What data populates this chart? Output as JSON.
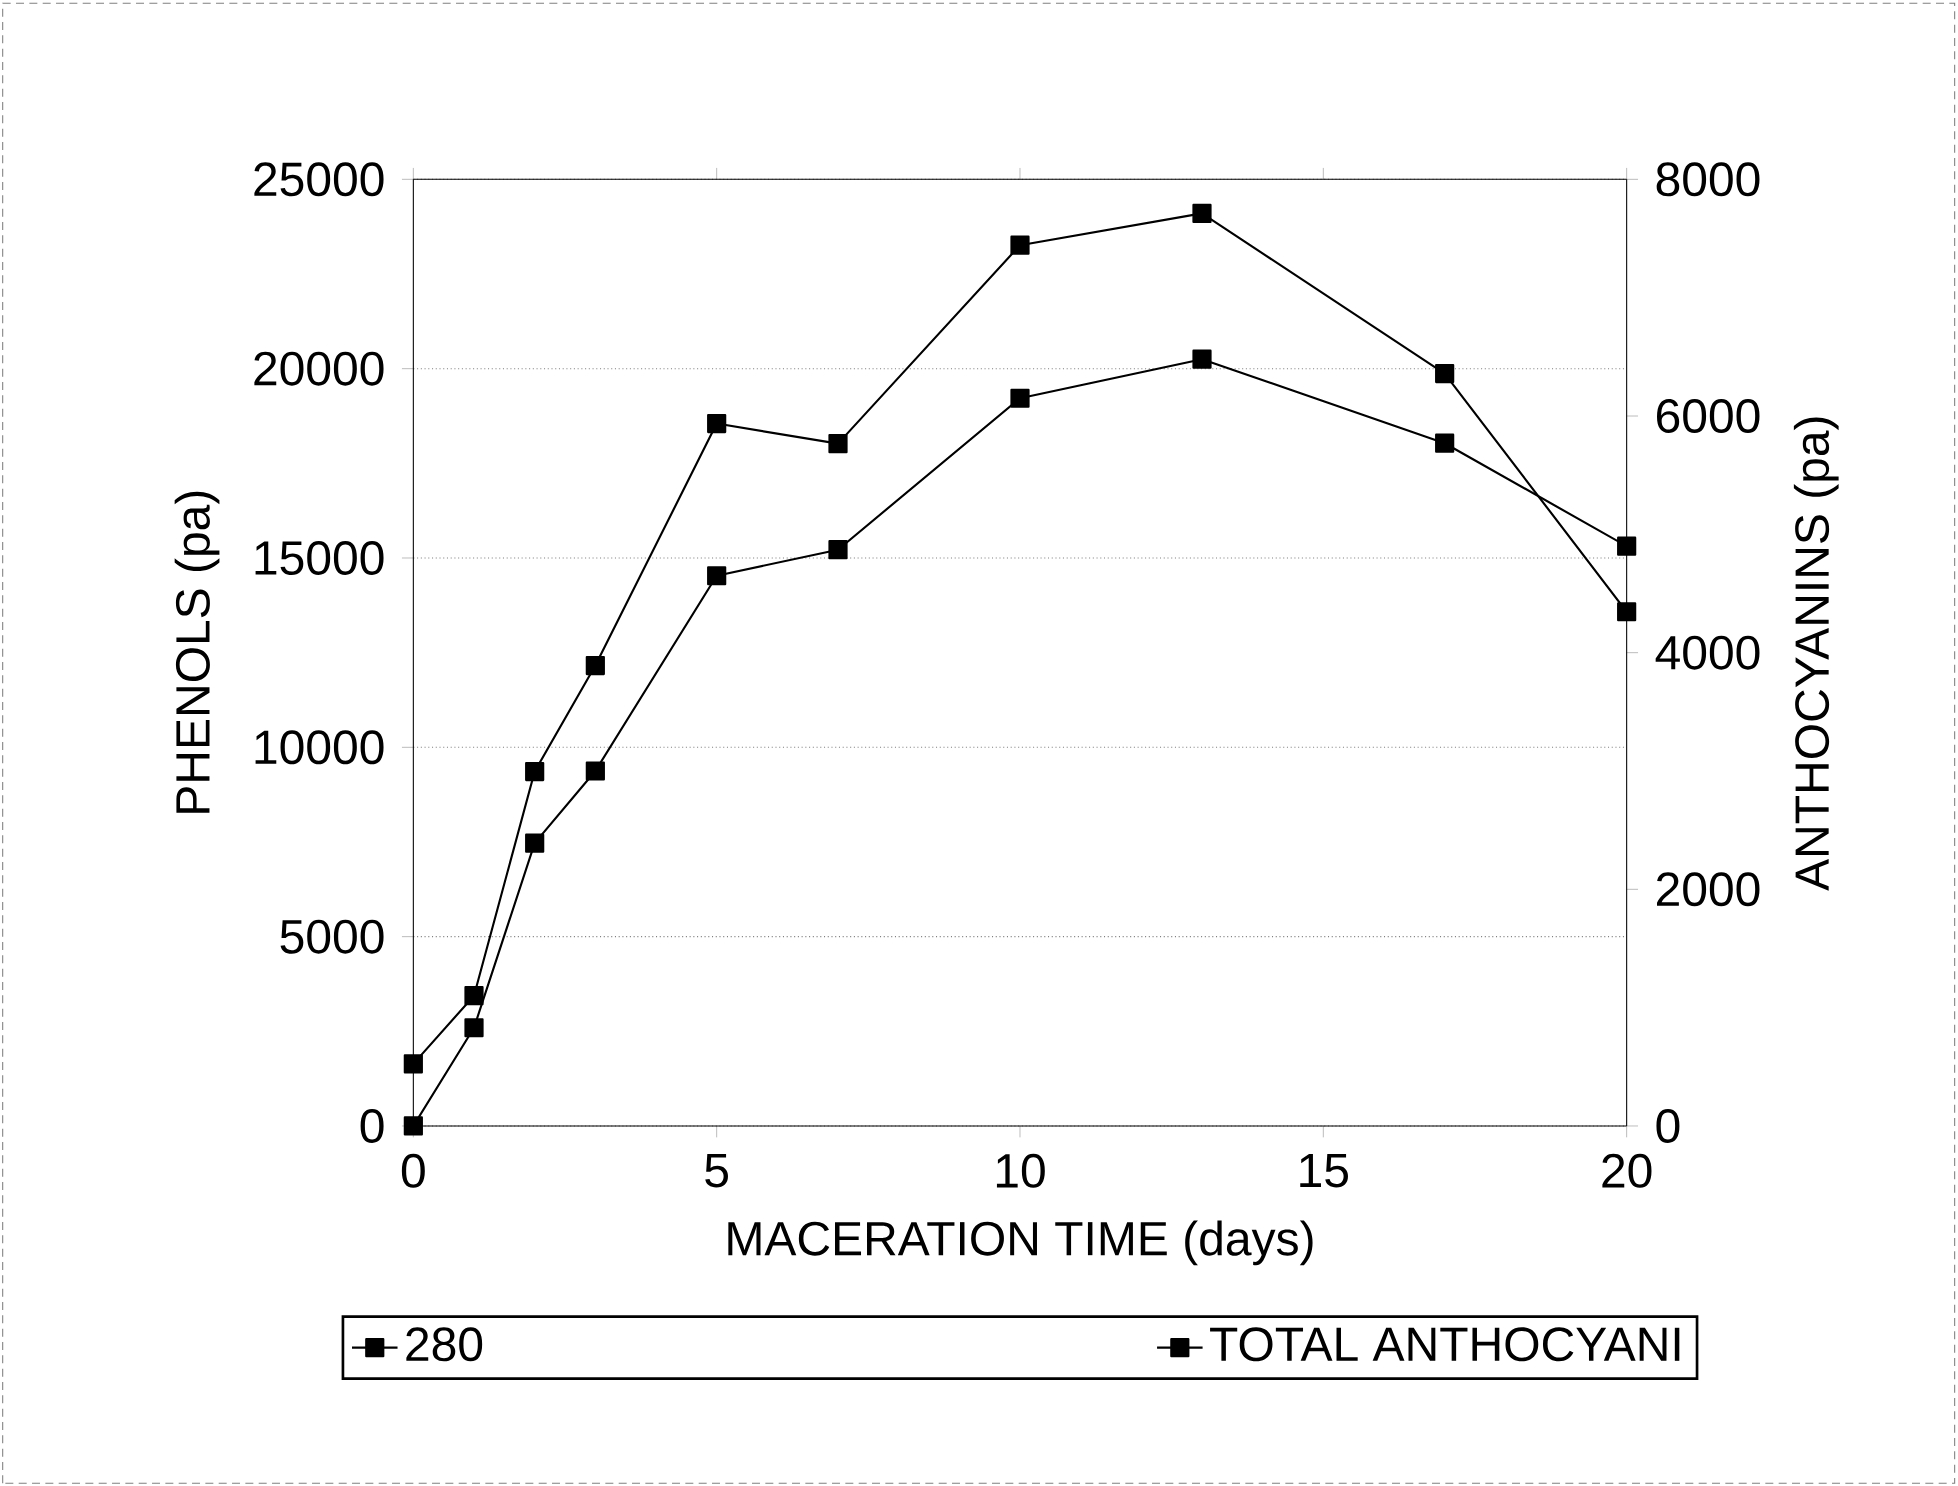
{
  "chart_data": {
    "type": "line",
    "xlabel": "MACERATION TIME (days)",
    "ylabel": "PHENOLS (pa)",
    "y2label": "ANTHOCYANINS (pa)",
    "x": [
      0,
      1,
      2,
      3,
      5,
      7,
      10,
      13,
      17,
      20
    ],
    "series": [
      {
        "name": "280",
        "color": "#000000",
        "values": [
          1640,
          3440,
          9360,
          12160,
          18550,
          18020,
          23260,
          24100,
          19870,
          13580
        ]
      },
      {
        "name": "TOTAL ANTHOCYANI",
        "color": "#000000",
        "axis": "y2",
        "values": [
          0,
          830,
          2390,
          3000,
          4650,
          4870,
          6150,
          6480,
          5770,
          4900
        ]
      }
    ],
    "xlim": [
      0,
      20
    ],
    "xticks": [
      0,
      5,
      10,
      15,
      20
    ],
    "ylim": [
      0,
      25000
    ],
    "yticks": [
      0,
      5000,
      10000,
      15000,
      20000,
      25000
    ],
    "y2lim": [
      0,
      8000
    ],
    "y2ticks": [
      0,
      2000,
      4000,
      6000,
      8000
    ],
    "grid": "y",
    "legend": "bottom",
    "marker": "square",
    "line_style": "solid"
  }
}
